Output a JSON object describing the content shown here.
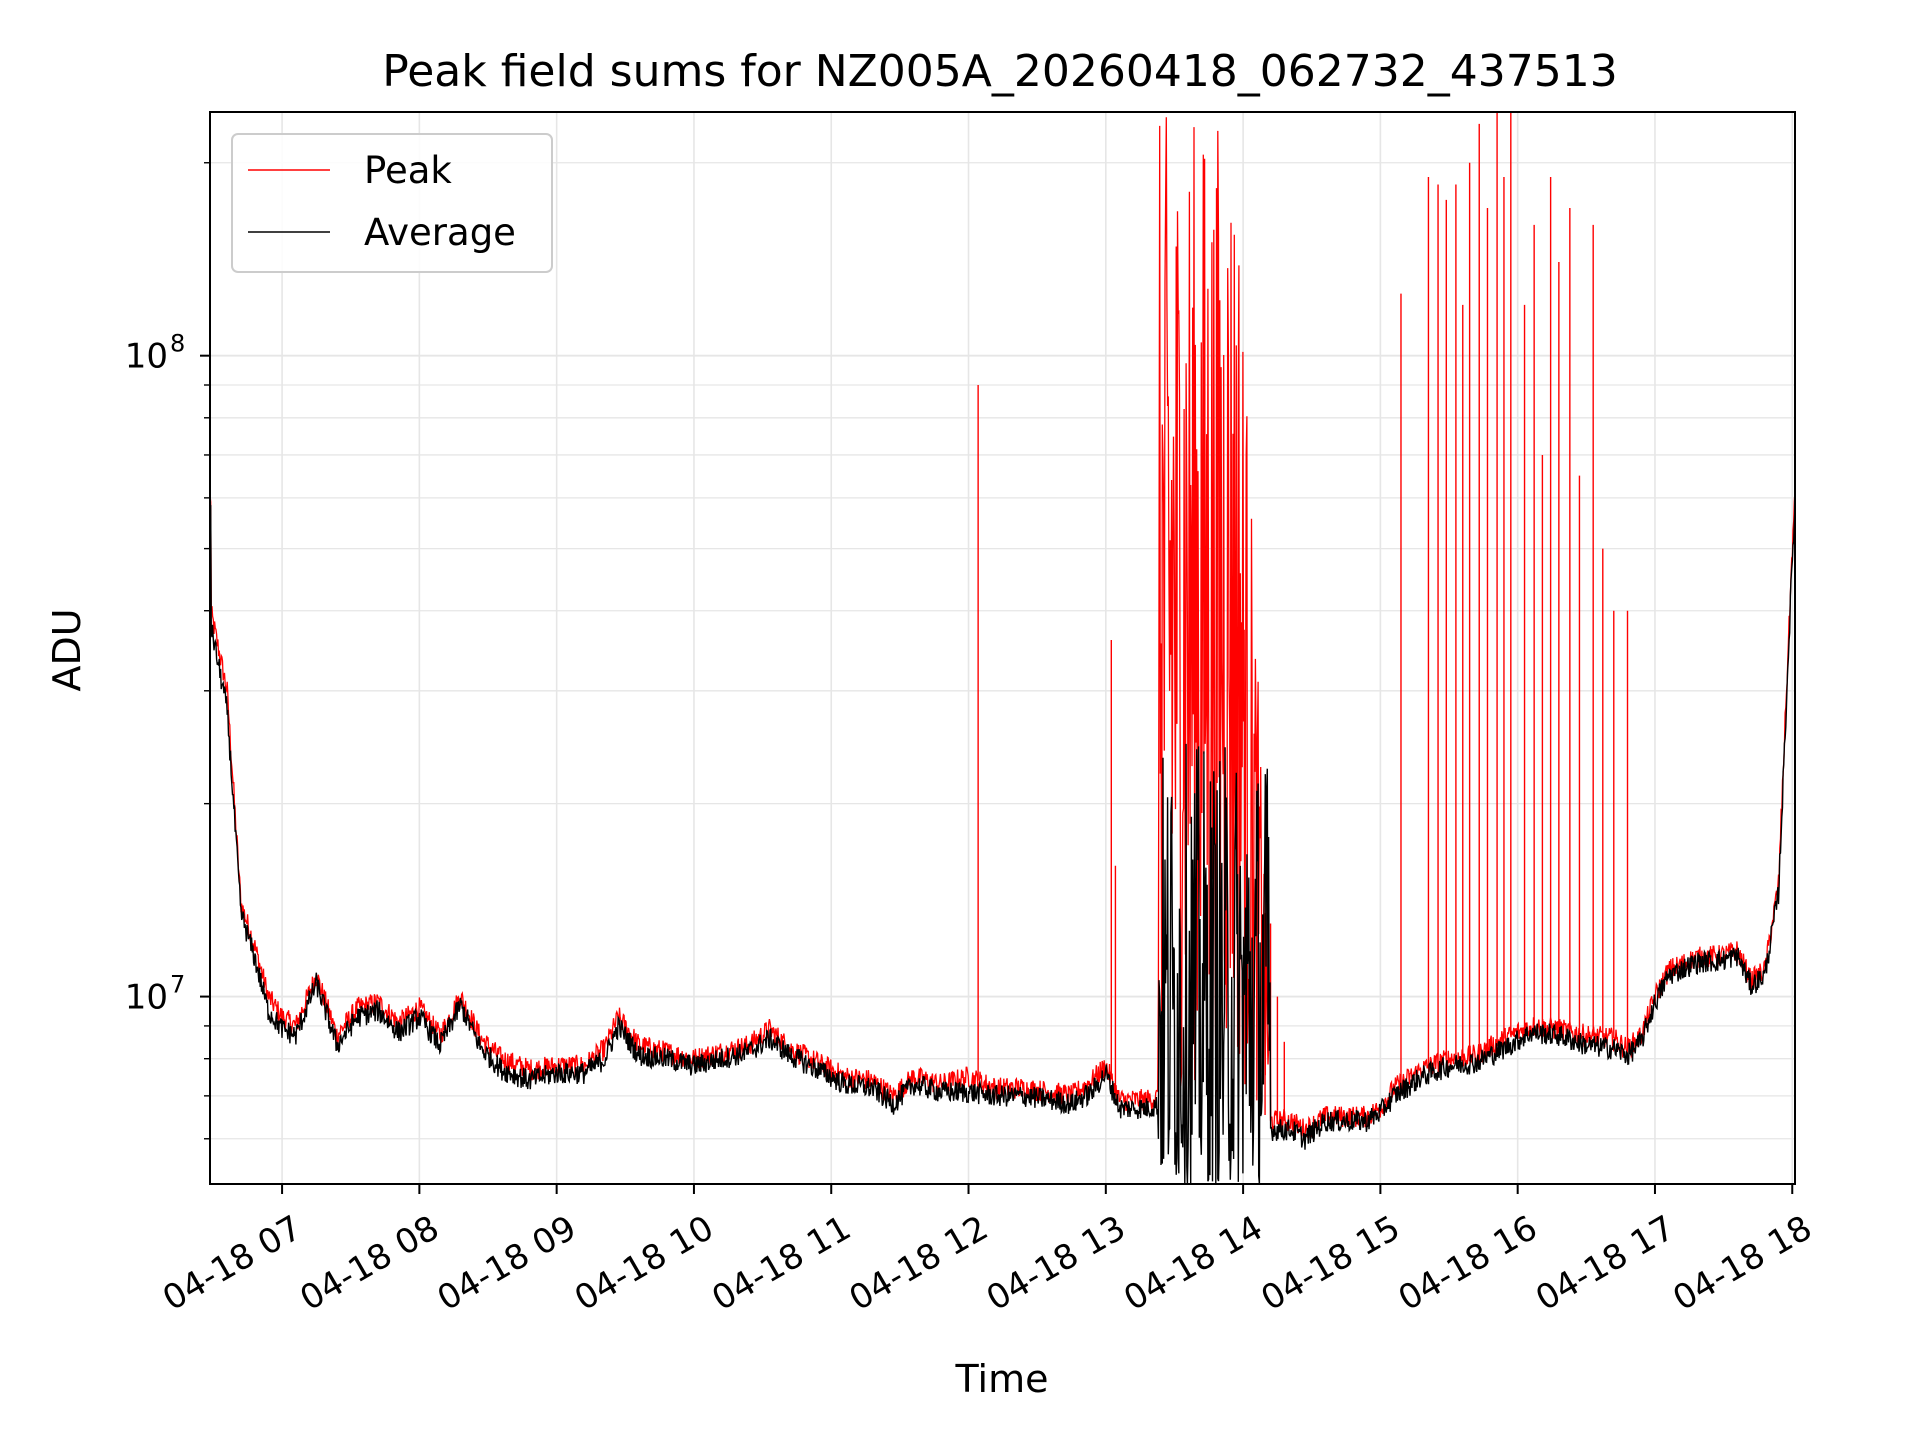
{
  "chart_data": {
    "type": "line",
    "title": "Peak field sums for NZ005A_20260418_062732_437513",
    "xlabel": "Time",
    "ylabel": "ADU",
    "yscale": "log",
    "ylim": [
      5100000,
      240000000
    ],
    "xlim_hours": [
      6.475,
      18.02
    ],
    "grid": true,
    "legend_position": "top-left",
    "x_ticks": [
      {
        "label": "04-18 07",
        "hour": 7
      },
      {
        "label": "04-18 08",
        "hour": 8
      },
      {
        "label": "04-18 09",
        "hour": 9
      },
      {
        "label": "04-18 10",
        "hour": 10
      },
      {
        "label": "04-18 11",
        "hour": 11
      },
      {
        "label": "04-18 12",
        "hour": 12
      },
      {
        "label": "04-18 13",
        "hour": 13
      },
      {
        "label": "04-18 14",
        "hour": 14
      },
      {
        "label": "04-18 15",
        "hour": 15
      },
      {
        "label": "04-18 16",
        "hour": 16
      },
      {
        "label": "04-18 17",
        "hour": 17
      },
      {
        "label": "04-18 18",
        "hour": 18
      }
    ],
    "y_ticks": [
      {
        "base": "10",
        "exp": "7",
        "value": 10000000
      },
      {
        "base": "10",
        "exp": "8",
        "value": 100000000
      }
    ],
    "colors": {
      "peak": "#ff0000",
      "average": "#000000"
    },
    "series": [
      {
        "name": "Peak",
        "color": "#ff0000",
        "baseline": [
          [
            6.48,
            40000000
          ],
          [
            6.6,
            30000000
          ],
          [
            6.7,
            14000000
          ],
          [
            6.8,
            12000000
          ],
          [
            6.9,
            10000000
          ],
          [
            7.0,
            9300000
          ],
          [
            7.1,
            9000000
          ],
          [
            7.25,
            10800000
          ],
          [
            7.4,
            8700000
          ],
          [
            7.55,
            9600000
          ],
          [
            7.7,
            9800000
          ],
          [
            7.85,
            9100000
          ],
          [
            8.0,
            9600000
          ],
          [
            8.15,
            8700000
          ],
          [
            8.3,
            10000000
          ],
          [
            8.45,
            8600000
          ],
          [
            8.6,
            8000000
          ],
          [
            8.8,
            7700000
          ],
          [
            9.0,
            7800000
          ],
          [
            9.2,
            7800000
          ],
          [
            9.35,
            8300000
          ],
          [
            9.45,
            9300000
          ],
          [
            9.6,
            8400000
          ],
          [
            9.8,
            8200000
          ],
          [
            10.0,
            8000000
          ],
          [
            10.2,
            8200000
          ],
          [
            10.4,
            8400000
          ],
          [
            10.55,
            8900000
          ],
          [
            10.7,
            8300000
          ],
          [
            10.9,
            7900000
          ],
          [
            11.1,
            7500000
          ],
          [
            11.3,
            7400000
          ],
          [
            11.45,
            7000000
          ],
          [
            11.6,
            7500000
          ],
          [
            11.8,
            7300000
          ],
          [
            12.0,
            7500000
          ],
          [
            12.2,
            7200000
          ],
          [
            12.4,
            7200000
          ],
          [
            12.6,
            7100000
          ],
          [
            12.75,
            7000000
          ],
          [
            12.9,
            7400000
          ],
          [
            13.0,
            7800000
          ],
          [
            13.1,
            6900000
          ],
          [
            13.3,
            6900000
          ],
          [
            13.42,
            7000000
          ],
          [
            13.6,
            7200000
          ],
          [
            13.8,
            7400000
          ],
          [
            14.0,
            7100000
          ],
          [
            14.2,
            6400000
          ],
          [
            14.35,
            6400000
          ],
          [
            14.45,
            6200000
          ],
          [
            14.6,
            6500000
          ],
          [
            14.8,
            6500000
          ],
          [
            14.9,
            6500000
          ],
          [
            15.0,
            6700000
          ],
          [
            15.1,
            7200000
          ],
          [
            15.3,
            7700000
          ],
          [
            15.5,
            8000000
          ],
          [
            15.7,
            8100000
          ],
          [
            15.9,
            8600000
          ],
          [
            16.1,
            9000000
          ],
          [
            16.3,
            8900000
          ],
          [
            16.5,
            8700000
          ],
          [
            16.7,
            8600000
          ],
          [
            16.8,
            8300000
          ],
          [
            16.9,
            8700000
          ],
          [
            17.0,
            10000000
          ],
          [
            17.1,
            11000000
          ],
          [
            17.3,
            11500000
          ],
          [
            17.5,
            11600000
          ],
          [
            17.6,
            11800000
          ],
          [
            17.7,
            10600000
          ],
          [
            17.8,
            11000000
          ],
          [
            17.9,
            15000000
          ],
          [
            18.0,
            50000000
          ],
          [
            18.02,
            60000000
          ]
        ],
        "spikes": [
          [
            12.07,
            90000000
          ],
          [
            13.04,
            36000000
          ],
          [
            13.07,
            16000000
          ],
          [
            14.16,
            13500000
          ],
          [
            14.2,
            13000000
          ],
          [
            14.25,
            10000000
          ],
          [
            14.3,
            8500000
          ],
          [
            15.15,
            125000000
          ],
          [
            15.35,
            190000000
          ],
          [
            15.42,
            185000000
          ],
          [
            15.48,
            175000000
          ],
          [
            15.55,
            185000000
          ],
          [
            15.6,
            120000000
          ],
          [
            15.65,
            200000000
          ],
          [
            15.72,
            230000000
          ],
          [
            15.78,
            170000000
          ],
          [
            15.85,
            240000000
          ],
          [
            15.9,
            190000000
          ],
          [
            15.95,
            240000000
          ],
          [
            16.05,
            120000000
          ],
          [
            16.12,
            160000000
          ],
          [
            16.18,
            70000000
          ],
          [
            16.24,
            190000000
          ],
          [
            16.3,
            140000000
          ],
          [
            16.38,
            170000000
          ],
          [
            16.45,
            65000000
          ],
          [
            16.55,
            160000000
          ],
          [
            16.62,
            50000000
          ],
          [
            16.7,
            40000000
          ],
          [
            16.8,
            40000000
          ]
        ],
        "dense_band": {
          "start_hour": 13.38,
          "end_hour": 14.2,
          "max": 240000000
        }
      },
      {
        "name": "Average",
        "color": "#000000",
        "baseline": [
          [
            6.48,
            38000000
          ],
          [
            6.6,
            28000000
          ],
          [
            6.7,
            13500000
          ],
          [
            6.8,
            11500000
          ],
          [
            6.9,
            9500000
          ],
          [
            7.0,
            8900000
          ],
          [
            7.1,
            8700000
          ],
          [
            7.25,
            10500000
          ],
          [
            7.4,
            8400000
          ],
          [
            7.55,
            9300000
          ],
          [
            7.7,
            9500000
          ],
          [
            7.85,
            8800000
          ],
          [
            8.0,
            9300000
          ],
          [
            8.15,
            8400000
          ],
          [
            8.3,
            9700000
          ],
          [
            8.45,
            8300000
          ],
          [
            8.6,
            7700000
          ],
          [
            8.8,
            7400000
          ],
          [
            9.0,
            7600000
          ],
          [
            9.2,
            7600000
          ],
          [
            9.35,
            8000000
          ],
          [
            9.45,
            9000000
          ],
          [
            9.6,
            8100000
          ],
          [
            9.8,
            8000000
          ],
          [
            10.0,
            7800000
          ],
          [
            10.2,
            8000000
          ],
          [
            10.4,
            8200000
          ],
          [
            10.55,
            8600000
          ],
          [
            10.7,
            8100000
          ],
          [
            10.9,
            7700000
          ],
          [
            11.1,
            7300000
          ],
          [
            11.3,
            7200000
          ],
          [
            11.45,
            6800000
          ],
          [
            11.6,
            7300000
          ],
          [
            11.8,
            7100000
          ],
          [
            12.0,
            7100000
          ],
          [
            12.2,
            7000000
          ],
          [
            12.4,
            7000000
          ],
          [
            12.6,
            6900000
          ],
          [
            12.75,
            6800000
          ],
          [
            12.9,
            7100000
          ],
          [
            13.0,
            7600000
          ],
          [
            13.1,
            6700000
          ],
          [
            13.3,
            6700000
          ],
          [
            13.42,
            6800000
          ],
          [
            13.6,
            7000000
          ],
          [
            13.8,
            7200000
          ],
          [
            14.0,
            6800000
          ],
          [
            14.2,
            6200000
          ],
          [
            14.35,
            6200000
          ],
          [
            14.45,
            6000000
          ],
          [
            14.6,
            6400000
          ],
          [
            14.8,
            6400000
          ],
          [
            14.9,
            6400000
          ],
          [
            15.0,
            6600000
          ],
          [
            15.1,
            7000000
          ],
          [
            15.3,
            7500000
          ],
          [
            15.5,
            7800000
          ],
          [
            15.7,
            7900000
          ],
          [
            15.9,
            8300000
          ],
          [
            16.1,
            8800000
          ],
          [
            16.3,
            8700000
          ],
          [
            16.5,
            8400000
          ],
          [
            16.7,
            8300000
          ],
          [
            16.8,
            8100000
          ],
          [
            16.9,
            8500000
          ],
          [
            17.0,
            9800000
          ],
          [
            17.1,
            10800000
          ],
          [
            17.3,
            11300000
          ],
          [
            17.5,
            11400000
          ],
          [
            17.6,
            11600000
          ],
          [
            17.7,
            10400000
          ],
          [
            17.8,
            10800000
          ],
          [
            17.9,
            14500000
          ],
          [
            18.0,
            48000000
          ],
          [
            18.02,
            58000000
          ]
        ],
        "dense_band": {
          "start_hour": 13.38,
          "end_hour": 14.2,
          "max": 25000000,
          "min": 5100000
        }
      }
    ]
  }
}
